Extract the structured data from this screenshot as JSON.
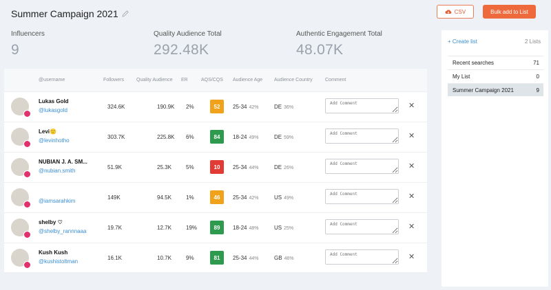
{
  "header": {
    "title": "Summer Campaign 2021",
    "csv_label": "CSV",
    "bulk_label": "Bulk add to List"
  },
  "stats": [
    {
      "label": "Influencers",
      "value": "9"
    },
    {
      "label": "Quality Audience Total",
      "value": "292.48K"
    },
    {
      "label": "Authentic Engagement Total",
      "value": "48.07K"
    }
  ],
  "table": {
    "headers": {
      "username": "@username",
      "followers": "Followers",
      "quality": "Quality Audience",
      "er": "ER",
      "aqs": "AQS/CQS",
      "age": "Audience Age",
      "country": "Audience Country",
      "comment": "Comment"
    },
    "comment_placeholder": "Add Comment",
    "rows": [
      {
        "name": "Lukas Gold",
        "handle": "@lukasgold",
        "followers": "324.6K",
        "quality": "190.9K",
        "er": "2%",
        "score": "52",
        "score_color": "#f0a31a",
        "age": "25-34",
        "age_pct": "42%",
        "country": "DE",
        "country_pct": "36%"
      },
      {
        "name": "Levi🙂",
        "handle": "@levinhotho",
        "followers": "303.7K",
        "quality": "225.8K",
        "er": "6%",
        "score": "84",
        "score_color": "#2e9a4d",
        "age": "18-24",
        "age_pct": "49%",
        "country": "DE",
        "country_pct": "59%"
      },
      {
        "name": "NUBIAN J. A. SM...",
        "handle": "@nubian.smith",
        "followers": "51.9K",
        "quality": "25.3K",
        "er": "5%",
        "score": "10",
        "score_color": "#e23b36",
        "age": "25-34",
        "age_pct": "44%",
        "country": "DE",
        "country_pct": "26%"
      },
      {
        "name": "",
        "handle": "@iamsarahkim",
        "followers": "149K",
        "quality": "94.5K",
        "er": "1%",
        "score": "46",
        "score_color": "#f0a31a",
        "age": "25-34",
        "age_pct": "42%",
        "country": "US",
        "country_pct": "49%"
      },
      {
        "name": "shelby ♡",
        "handle": "@shelby_rannnaaa",
        "followers": "19.7K",
        "quality": "12.7K",
        "er": "19%",
        "score": "89",
        "score_color": "#2e9a4d",
        "age": "18-24",
        "age_pct": "48%",
        "country": "US",
        "country_pct": "25%"
      },
      {
        "name": "Kush Kush",
        "handle": "@kushistoltman",
        "followers": "16.1K",
        "quality": "10.7K",
        "er": "9%",
        "score": "81",
        "score_color": "#2e9a4d",
        "age": "25-34",
        "age_pct": "44%",
        "country": "GB",
        "country_pct": "46%"
      }
    ]
  },
  "panel": {
    "create_label": "+ Create list",
    "count_label": "2 Lists",
    "items": [
      {
        "label": "Recent searches",
        "count": "71",
        "active": false
      },
      {
        "label": "My List",
        "count": "0",
        "active": false
      },
      {
        "label": "Summer Campaign 2021",
        "count": "9",
        "active": true
      }
    ]
  },
  "colors": {
    "accent": "#ee6a3c",
    "link": "#3a8fd6"
  },
  "icons": [
    "pencil-icon",
    "cloud-download-icon",
    "instagram-icon",
    "close-icon",
    "plus-icon"
  ]
}
